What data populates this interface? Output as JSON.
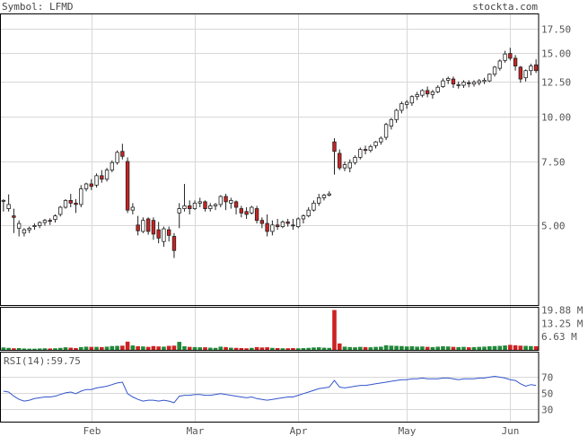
{
  "header": {
    "symbol_label": "Symbol: LFMD",
    "watermark": "stockta.com"
  },
  "colors": {
    "up": "#ffffff",
    "down": "#cc2222",
    "outline": "#222222",
    "grid": "#d8d8d8",
    "vol_up": "#22883a",
    "vol_down": "#cc2222",
    "rsi": "#3355cc"
  },
  "chart_data": [
    {
      "type": "candlestick",
      "scale": "log",
      "ylim": [
        3.0,
        19.3
      ],
      "yticks": [
        17.5,
        15.0,
        12.5,
        10.0,
        7.5,
        5.0
      ],
      "ytick_labels": [
        "17.50",
        "15.00",
        "12.50",
        "10.00",
        "7.50",
        "5.00"
      ],
      "x_tick_labels": [
        "Feb",
        "Mar",
        "Apr",
        "May",
        "Jun"
      ],
      "x_tick_index": [
        17,
        37,
        57,
        78,
        98
      ],
      "candles": [
        [
          5.85,
          5.9,
          5.85,
          5.45
        ],
        [
          5.55,
          6.08,
          5.7,
          5.45
        ],
        [
          5.3,
          5.55,
          5.25,
          4.75
        ],
        [
          4.9,
          5.15,
          5.05,
          4.65
        ],
        [
          4.75,
          4.9,
          4.85,
          4.65
        ],
        [
          4.85,
          4.95,
          4.9,
          4.75
        ],
        [
          4.95,
          5.05,
          4.98,
          4.85
        ],
        [
          4.98,
          5.12,
          5.08,
          4.9
        ],
        [
          5.08,
          5.2,
          5.15,
          4.98
        ],
        [
          5.15,
          5.22,
          5.12,
          5.0
        ],
        [
          5.18,
          5.35,
          5.3,
          5.08
        ],
        [
          5.35,
          5.65,
          5.6,
          5.28
        ],
        [
          5.6,
          5.9,
          5.85,
          5.55
        ],
        [
          5.85,
          6.1,
          5.75,
          5.6
        ],
        [
          5.75,
          5.9,
          5.7,
          5.4
        ],
        [
          5.7,
          6.45,
          6.3,
          5.6
        ],
        [
          6.3,
          6.55,
          6.5,
          6.2
        ],
        [
          6.5,
          6.7,
          6.4,
          6.25
        ],
        [
          6.45,
          6.95,
          6.85,
          6.35
        ],
        [
          6.85,
          7.1,
          6.7,
          6.55
        ],
        [
          6.7,
          7.2,
          7.1,
          6.6
        ],
        [
          7.1,
          7.55,
          7.45,
          7.0
        ],
        [
          7.45,
          8.05,
          7.95,
          7.35
        ],
        [
          8.0,
          8.4,
          7.75,
          7.6
        ],
        [
          7.5,
          7.7,
          5.5,
          5.4
        ],
        [
          5.5,
          5.75,
          5.6,
          5.35
        ],
        [
          5.0,
          5.3,
          4.82,
          4.68
        ],
        [
          4.8,
          5.25,
          5.15,
          4.75
        ],
        [
          5.2,
          5.25,
          4.8,
          4.7
        ],
        [
          5.15,
          5.25,
          4.72,
          4.55
        ],
        [
          4.85,
          5.1,
          4.6,
          4.45
        ],
        [
          4.5,
          4.95,
          4.88,
          4.35
        ],
        [
          4.85,
          4.95,
          4.68,
          4.5
        ],
        [
          4.65,
          4.75,
          4.25,
          4.05
        ],
        [
          5.4,
          5.75,
          5.55,
          4.9
        ],
        [
          5.55,
          6.5,
          5.65,
          5.45
        ],
        [
          5.65,
          5.85,
          5.55,
          5.35
        ],
        [
          5.55,
          5.85,
          5.75,
          5.5
        ],
        [
          5.75,
          5.95,
          5.8,
          5.6
        ],
        [
          5.8,
          5.85,
          5.55,
          5.45
        ],
        [
          5.55,
          5.75,
          5.65,
          5.45
        ],
        [
          5.65,
          5.75,
          5.7,
          5.5
        ],
        [
          5.7,
          6.05,
          6.0,
          5.6
        ],
        [
          6.0,
          6.1,
          5.8,
          5.5
        ],
        [
          5.75,
          5.95,
          5.85,
          5.55
        ],
        [
          5.8,
          5.85,
          5.6,
          5.35
        ],
        [
          5.55,
          5.65,
          5.4,
          5.25
        ],
        [
          5.45,
          5.6,
          5.35,
          5.2
        ],
        [
          5.4,
          5.65,
          5.6,
          5.35
        ],
        [
          5.55,
          5.65,
          5.15,
          5.05
        ],
        [
          5.15,
          5.25,
          5.05,
          4.9
        ],
        [
          5.05,
          5.35,
          4.8,
          4.65
        ],
        [
          4.8,
          5.15,
          5.0,
          4.68
        ],
        [
          5.0,
          5.2,
          4.95,
          4.85
        ],
        [
          4.95,
          5.15,
          5.1,
          4.9
        ],
        [
          5.1,
          5.2,
          5.05,
          4.95
        ],
        [
          5.0,
          5.2,
          4.98,
          4.85
        ],
        [
          4.95,
          5.25,
          5.2,
          4.9
        ],
        [
          5.2,
          5.35,
          5.3,
          5.05
        ],
        [
          5.3,
          5.6,
          5.5,
          5.25
        ],
        [
          5.5,
          5.85,
          5.75,
          5.45
        ],
        [
          5.75,
          6.1,
          5.95,
          5.65
        ],
        [
          5.95,
          6.1,
          6.05,
          5.85
        ],
        [
          6.05,
          6.2,
          6.1,
          6.0
        ],
        [
          8.5,
          8.7,
          8.0,
          6.9
        ],
        [
          7.9,
          8.1,
          7.2,
          7.1
        ],
        [
          7.2,
          7.5,
          7.35,
          7.05
        ],
        [
          7.2,
          7.6,
          7.45,
          7.0
        ],
        [
          7.45,
          7.8,
          7.7,
          7.35
        ],
        [
          7.7,
          8.2,
          8.1,
          7.6
        ],
        [
          8.1,
          8.3,
          8.05,
          7.85
        ],
        [
          8.05,
          8.35,
          8.25,
          7.95
        ],
        [
          8.3,
          8.55,
          8.5,
          8.15
        ],
        [
          8.5,
          8.8,
          8.7,
          8.35
        ],
        [
          8.75,
          9.6,
          9.5,
          8.6
        ],
        [
          9.4,
          9.9,
          9.8,
          9.2
        ],
        [
          9.8,
          10.5,
          10.4,
          9.6
        ],
        [
          10.4,
          11.0,
          10.85,
          10.2
        ],
        [
          10.8,
          11.1,
          10.95,
          10.5
        ],
        [
          10.9,
          11.45,
          11.35,
          10.7
        ],
        [
          11.35,
          11.7,
          11.5,
          11.1
        ],
        [
          11.45,
          11.9,
          11.8,
          11.3
        ],
        [
          11.8,
          12.1,
          11.55,
          11.3
        ],
        [
          11.5,
          11.85,
          11.7,
          11.2
        ],
        [
          11.7,
          12.2,
          12.05,
          11.6
        ],
        [
          12.1,
          12.75,
          12.55,
          12.0
        ],
        [
          12.6,
          12.9,
          12.75,
          12.3
        ],
        [
          12.7,
          12.9,
          12.3,
          12.0
        ],
        [
          12.2,
          12.5,
          12.25,
          11.95
        ],
        [
          12.2,
          12.6,
          12.45,
          12.0
        ],
        [
          12.4,
          12.6,
          12.35,
          12.05
        ],
        [
          12.3,
          12.6,
          12.45,
          12.1
        ],
        [
          12.4,
          12.7,
          12.55,
          12.2
        ],
        [
          12.5,
          12.8,
          12.6,
          12.3
        ],
        [
          12.55,
          13.15,
          13.1,
          12.45
        ],
        [
          13.1,
          13.8,
          13.7,
          12.9
        ],
        [
          13.6,
          14.4,
          14.25,
          13.4
        ],
        [
          14.3,
          15.2,
          14.9,
          14.1
        ],
        [
          14.95,
          15.5,
          14.5,
          14.3
        ],
        [
          14.5,
          14.8,
          13.8,
          13.4
        ],
        [
          13.7,
          13.8,
          12.7,
          12.4
        ],
        [
          12.8,
          13.5,
          13.4,
          12.5
        ],
        [
          13.4,
          14.0,
          13.8,
          13.0
        ],
        [
          13.9,
          14.4,
          13.4,
          13.2
        ]
      ]
    },
    {
      "type": "bar",
      "ylim": [
        0,
        21.5
      ],
      "yticks": [
        19.88,
        13.25,
        6.63
      ],
      "ytick_labels": [
        "19.88 M",
        "13.25 M",
        "6.63 M"
      ],
      "volumes": [
        1.2,
        1.0,
        0.8,
        0.9,
        0.7,
        0.6,
        0.6,
        0.7,
        0.8,
        0.7,
        0.8,
        1.0,
        1.3,
        1.1,
        0.9,
        1.4,
        1.6,
        1.5,
        1.5,
        1.4,
        1.6,
        1.9,
        2.0,
        2.1,
        4.1,
        2.2,
        1.8,
        1.7,
        1.5,
        1.9,
        1.7,
        1.6,
        2.0,
        2.1,
        4.0,
        1.8,
        1.5,
        1.4,
        1.3,
        1.3,
        1.1,
        1.0,
        1.6,
        1.4,
        1.1,
        1.0,
        0.9,
        0.8,
        1.0,
        1.4,
        1.2,
        1.3,
        1.0,
        0.9,
        0.8,
        0.8,
        0.9,
        0.8,
        0.9,
        1.0,
        1.2,
        1.3,
        1.1,
        1.0,
        19.9,
        3.2,
        1.6,
        1.4,
        1.3,
        1.5,
        1.4,
        1.3,
        1.5,
        1.6,
        2.3,
        2.1,
        2.0,
        1.9,
        1.7,
        1.8,
        1.6,
        1.7,
        1.5,
        1.4,
        1.6,
        1.8,
        1.7,
        1.5,
        1.4,
        1.5,
        1.3,
        1.4,
        1.5,
        1.6,
        1.8,
        1.9,
        2.0,
        2.2,
        2.5,
        2.3,
        2.1,
        2.0,
        1.9,
        1.8
      ]
    },
    {
      "type": "line",
      "label": "RSI(14):",
      "value_label": "59.75",
      "ylim": [
        15,
        100
      ],
      "yticks": [
        70,
        50,
        30
      ],
      "ytick_labels": [
        "70",
        "50",
        "30"
      ],
      "rsi": [
        52,
        51,
        46,
        42,
        40,
        41,
        43,
        44,
        45,
        45,
        46,
        48,
        50,
        51,
        49,
        52,
        54,
        54,
        56,
        57,
        58,
        60,
        62,
        63,
        49,
        45,
        42,
        40,
        41,
        41,
        40,
        41,
        40,
        38,
        46,
        47,
        47,
        48,
        48,
        47,
        47,
        48,
        49,
        48,
        47,
        46,
        45,
        44,
        45,
        43,
        42,
        41,
        42,
        43,
        44,
        45,
        45,
        47,
        49,
        51,
        53,
        55,
        56,
        57,
        65,
        57,
        56,
        57,
        58,
        59,
        59,
        60,
        61,
        62,
        63,
        64,
        65,
        66,
        66,
        67,
        67,
        68,
        67,
        67,
        67,
        68,
        68,
        67,
        66,
        67,
        67,
        67,
        68,
        68,
        69,
        70,
        69,
        68,
        66,
        65,
        61,
        58,
        60,
        59
      ]
    }
  ]
}
